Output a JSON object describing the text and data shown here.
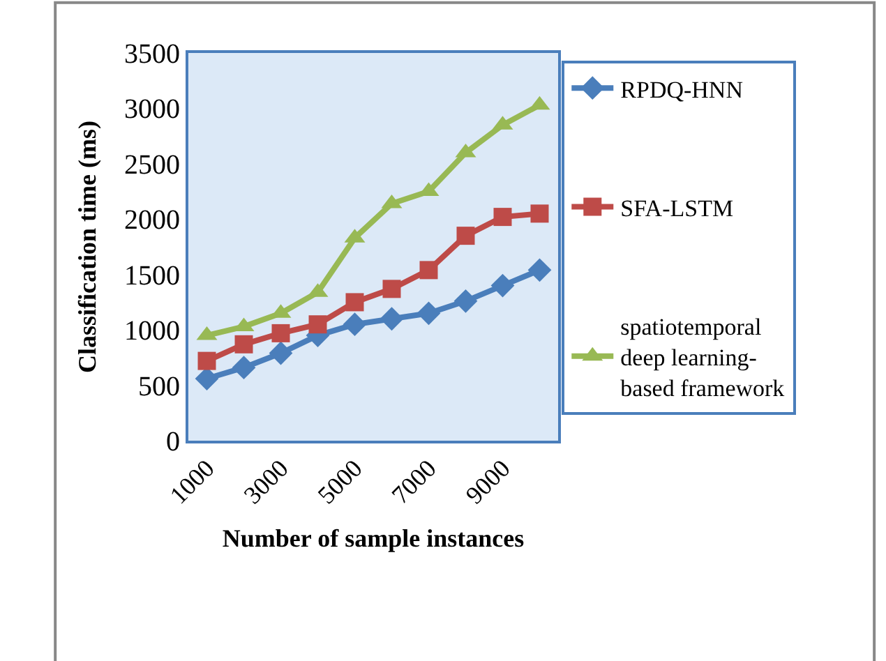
{
  "chart_data": {
    "type": "line",
    "xlabel": "Number of sample instances",
    "ylabel": "Classification time (ms)",
    "categories": [
      "1000",
      null,
      "3000",
      null,
      "5000",
      null,
      "7000",
      null,
      "9000",
      null
    ],
    "series": [
      {
        "name": "RPDQ-HNN",
        "color": "#4a7ebb",
        "marker": "diamond",
        "values": [
          560,
          660,
          790,
          950,
          1050,
          1100,
          1150,
          1260,
          1400,
          1540
        ]
      },
      {
        "name": "SFA-LSTM",
        "color": "#be4b48",
        "marker": "square",
        "values": [
          720,
          870,
          970,
          1050,
          1250,
          1370,
          1540,
          1850,
          2020,
          2050
        ]
      },
      {
        "name": "spatiotemporal deep learning-based framework",
        "color": "#98b954",
        "marker": "triangle",
        "values": [
          950,
          1030,
          1150,
          1340,
          1830,
          2140,
          2250,
          2600,
          2850,
          3030
        ]
      }
    ],
    "ylim": [
      0,
      3500
    ],
    "yticks": [
      0,
      500,
      1000,
      1500,
      2000,
      2500,
      3000,
      3500
    ],
    "grid": false,
    "legend": "right",
    "line_style": "solid"
  }
}
